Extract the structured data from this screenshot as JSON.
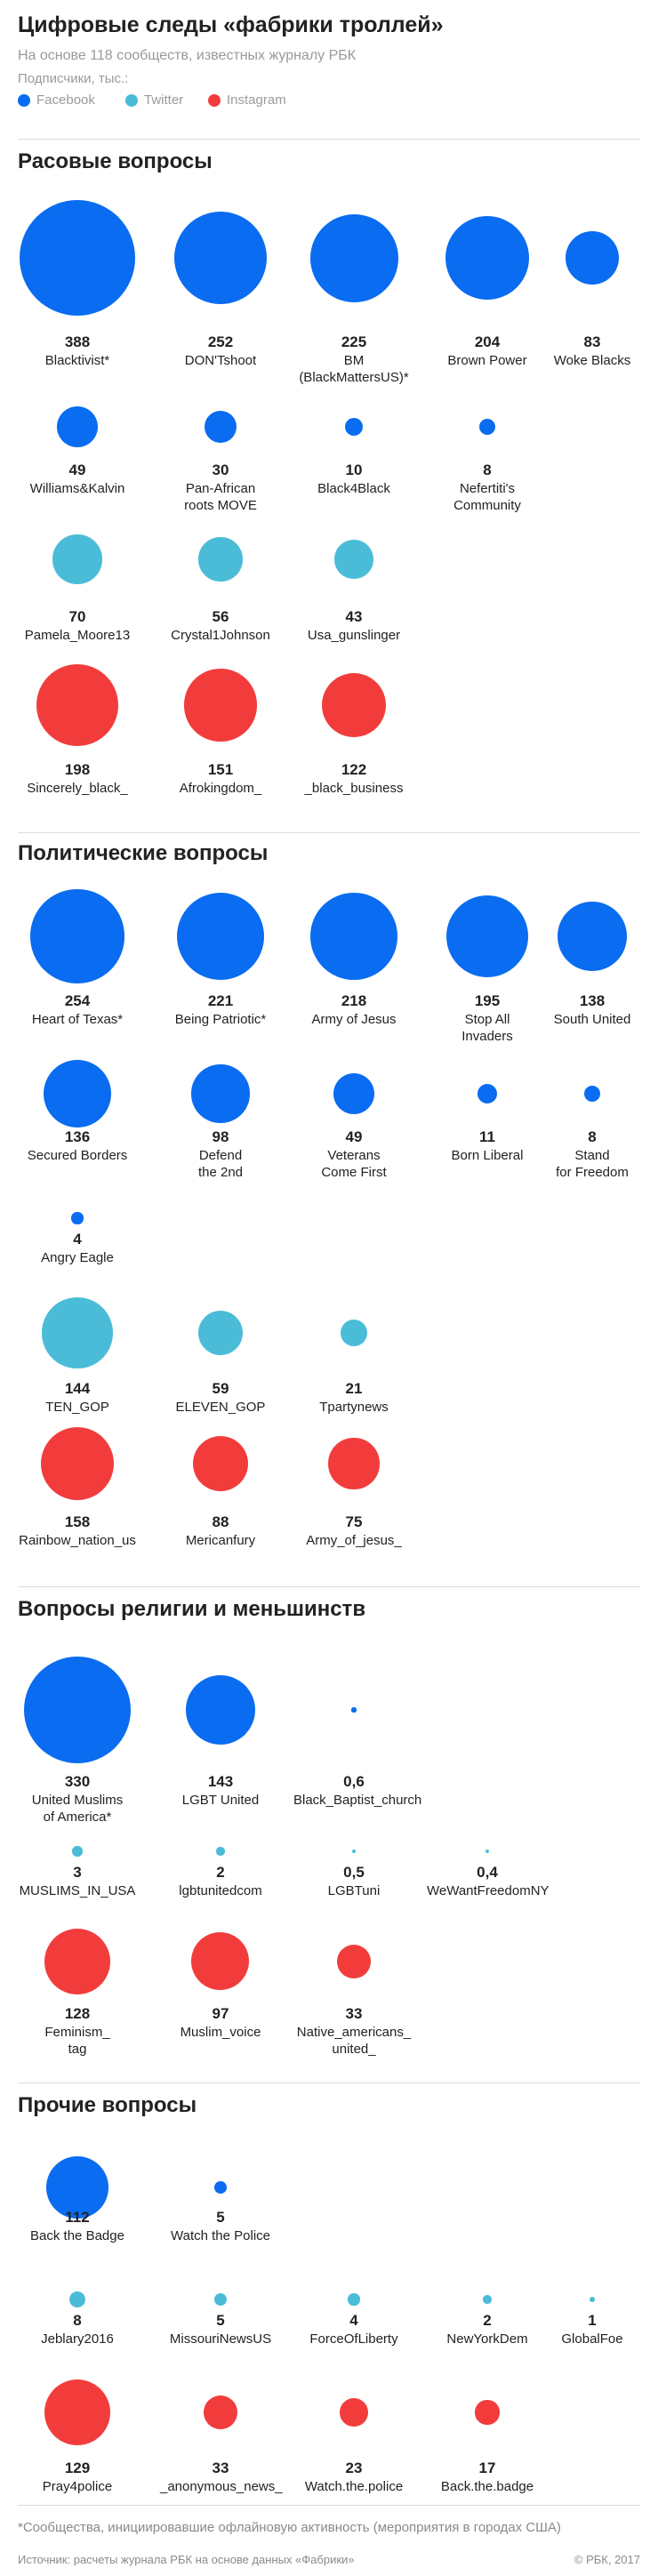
{
  "title": "Цифровые следы «фабрики троллей»",
  "subtitle": "На основе 118 сообществ, известных журналу РБК",
  "legend": {
    "title": "Подписчики, тыс.:",
    "items": [
      {
        "label": "Facebook",
        "color": "#0a6cf0"
      },
      {
        "label": "Twitter",
        "color": "#4bbcd8"
      },
      {
        "label": "Instagram",
        "color": "#f23c3c"
      }
    ]
  },
  "colors": {
    "facebook": "#0a6cf0",
    "twitter": "#4bbcd8",
    "instagram": "#f23c3c"
  },
  "chart_data": {
    "type": "bubble",
    "unit": "Подписчики, тыс.",
    "sections": [
      {
        "title": "Расовые вопросы",
        "rows": [
          [
            {
              "name": "Blacktivist*",
              "value": "388",
              "platform": "facebook"
            },
            {
              "name": "DON'Tshoot",
              "value": "252",
              "platform": "facebook"
            },
            {
              "name": "BM\n(BlackMattersUS)*",
              "value": "225",
              "platform": "facebook"
            },
            {
              "name": "Brown Power",
              "value": "204",
              "platform": "facebook"
            },
            {
              "name": "Woke Blacks",
              "value": "83",
              "platform": "facebook"
            }
          ],
          [
            {
              "name": "Williams&Kalvin",
              "value": "49",
              "platform": "facebook"
            },
            {
              "name": "Pan-African\nroots MOVE",
              "value": "30",
              "platform": "facebook"
            },
            {
              "name": "Black4Black",
              "value": "10",
              "platform": "facebook"
            },
            {
              "name": "Nefertiti's\nCommunity",
              "value": "8",
              "platform": "facebook"
            }
          ],
          [
            {
              "name": "Pamela_Moore13",
              "value": "70",
              "platform": "twitter"
            },
            {
              "name": "Crystal1Johnson",
              "value": "56",
              "platform": "twitter"
            },
            {
              "name": "Usa_gunslinger",
              "value": "43",
              "platform": "twitter"
            }
          ],
          [
            {
              "name": "Sincerely_black_",
              "value": "198",
              "platform": "instagram"
            },
            {
              "name": "Afrokingdom_",
              "value": "151",
              "platform": "instagram"
            },
            {
              "name": "_black_business",
              "value": "122",
              "platform": "instagram"
            }
          ]
        ]
      },
      {
        "title": "Политические вопросы",
        "rows": [
          [
            {
              "name": "Heart of Texas*",
              "value": "254",
              "platform": "facebook"
            },
            {
              "name": "Being Patriotic*",
              "value": "221",
              "platform": "facebook"
            },
            {
              "name": "Army of Jesus",
              "value": "218",
              "platform": "facebook"
            },
            {
              "name": "Stop All\nInvaders",
              "value": "195",
              "platform": "facebook"
            },
            {
              "name": "South United",
              "value": "138",
              "platform": "facebook"
            }
          ],
          [
            {
              "name": "Secured Borders",
              "value": "136",
              "platform": "facebook"
            },
            {
              "name": "Defend\nthe 2nd",
              "value": "98",
              "platform": "facebook"
            },
            {
              "name": "Veterans\nCome First",
              "value": "49",
              "platform": "facebook"
            },
            {
              "name": "Born Liberal",
              "value": "11",
              "platform": "facebook"
            },
            {
              "name": "Stand\nfor Freedom",
              "value": "8",
              "platform": "facebook"
            }
          ],
          [
            {
              "name": "Angry Eagle",
              "value": "4",
              "platform": "facebook"
            }
          ],
          [
            {
              "name": "TEN_GOP",
              "value": "144",
              "platform": "twitter"
            },
            {
              "name": "ELEVEN_GOP",
              "value": "59",
              "platform": "twitter"
            },
            {
              "name": "Tpartynews",
              "value": "21",
              "platform": "twitter"
            }
          ],
          [
            {
              "name": "Rainbow_nation_us",
              "value": "158",
              "platform": "instagram"
            },
            {
              "name": "Mericanfury",
              "value": "88",
              "platform": "instagram"
            },
            {
              "name": "Army_of_jesus_",
              "value": "75",
              "platform": "instagram"
            }
          ]
        ]
      },
      {
        "title": "Вопросы религии и меньшинств",
        "rows": [
          [
            {
              "name": "United Muslims\nof America*",
              "value": "330",
              "platform": "facebook"
            },
            {
              "name": "LGBT United",
              "value": "143",
              "platform": "facebook"
            },
            {
              "name": "Black_Baptist_church",
              "value": "0,6",
              "platform": "facebook"
            }
          ],
          [
            {
              "name": "MUSLIMS_IN_USA",
              "value": "3",
              "platform": "twitter"
            },
            {
              "name": "lgbtunitedcom",
              "value": "2",
              "platform": "twitter"
            },
            {
              "name": "LGBTuni",
              "value": "0,5",
              "platform": "twitter"
            },
            {
              "name": "WeWantFreedomNY",
              "value": "0,4",
              "platform": "twitter"
            }
          ],
          [
            {
              "name": "Feminism_\ntag",
              "value": "128",
              "platform": "instagram"
            },
            {
              "name": "Muslim_voice",
              "value": "97",
              "platform": "instagram"
            },
            {
              "name": "Native_americans_\nunited_",
              "value": "33",
              "platform": "instagram"
            }
          ]
        ]
      },
      {
        "title": "Прочие вопросы",
        "rows": [
          [
            {
              "name": "Back the Badge",
              "value": "112",
              "platform": "facebook"
            },
            {
              "name": "Watch the Police",
              "value": "5",
              "platform": "facebook"
            }
          ],
          [
            {
              "name": "Jeblary2016",
              "value": "8",
              "platform": "twitter"
            },
            {
              "name": "MissouriNewsUS",
              "value": "5",
              "platform": "twitter"
            },
            {
              "name": "ForceOfLiberty",
              "value": "4",
              "platform": "twitter"
            },
            {
              "name": "NewYorkDem",
              "value": "2",
              "platform": "twitter"
            },
            {
              "name": "GlobalFoe",
              "value": "1",
              "platform": "twitter"
            }
          ],
          [
            {
              "name": "Pray4police",
              "value": "129",
              "platform": "instagram"
            },
            {
              "name": "_anonymous_news_",
              "value": "33",
              "platform": "instagram"
            },
            {
              "name": "Watch.the.police",
              "value": "23",
              "platform": "instagram"
            },
            {
              "name": "Back.the.badge",
              "value": "17",
              "platform": "instagram"
            }
          ]
        ]
      }
    ]
  },
  "footnote": "*Сообщества, инициировавшие офлайновую активность (мероприятия в городах США)",
  "source": "Источник: расчеты журнала РБК на основе данных «Фабрики»",
  "copyright": "© РБК, 2017"
}
